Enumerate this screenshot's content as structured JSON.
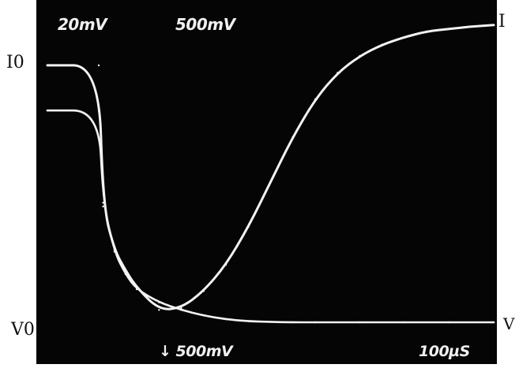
{
  "chart_data": {
    "type": "line",
    "description_visible": false,
    "colors": {
      "screen": "#050505",
      "trace": "#f2f2f2",
      "border": "#ffffff",
      "label": "#111111"
    },
    "readouts": {
      "ch1_scale": "20mV",
      "ch2_scale": "500mV",
      "trigger": "↓ 500mV",
      "timebase": "100µS"
    },
    "axis_labels": {
      "current_start": "I0",
      "current_end": "I",
      "voltage_start": "V0",
      "voltage_end": "V"
    },
    "series": [
      {
        "name": "I",
        "role": "current",
        "x": [
          0.0,
          1.15,
          1.25,
          1.5,
          1.75,
          2.0,
          2.5,
          3.0,
          3.5,
          4.0,
          4.5,
          5.0,
          5.5,
          6.0,
          6.5,
          7.0,
          7.5,
          8.0,
          8.5,
          9.0,
          9.5,
          10.0
        ],
        "y": [
          6.85,
          6.85,
          3.1,
          1.95,
          1.4,
          0.95,
          0.35,
          0.4,
          0.85,
          1.55,
          2.55,
          3.75,
          4.95,
          5.95,
          6.65,
          7.1,
          7.4,
          7.6,
          7.75,
          7.82,
          7.88,
          7.92
        ]
      },
      {
        "name": "V",
        "role": "voltage",
        "x": [
          0.0,
          1.15,
          1.25,
          1.5,
          1.75,
          2.0,
          2.5,
          3.0,
          3.5,
          4.0,
          4.5,
          5.0,
          5.5,
          6.0,
          7.0,
          8.0,
          9.0,
          10.0
        ],
        "y": [
          5.65,
          5.65,
          3.2,
          1.9,
          1.3,
          0.9,
          0.55,
          0.35,
          0.2,
          0.1,
          0.05,
          0.03,
          0.02,
          0.02,
          0.02,
          0.02,
          0.02,
          0.02
        ]
      }
    ],
    "xlim": [
      0,
      10
    ],
    "ylim": [
      0,
      8
    ],
    "grid": false
  }
}
